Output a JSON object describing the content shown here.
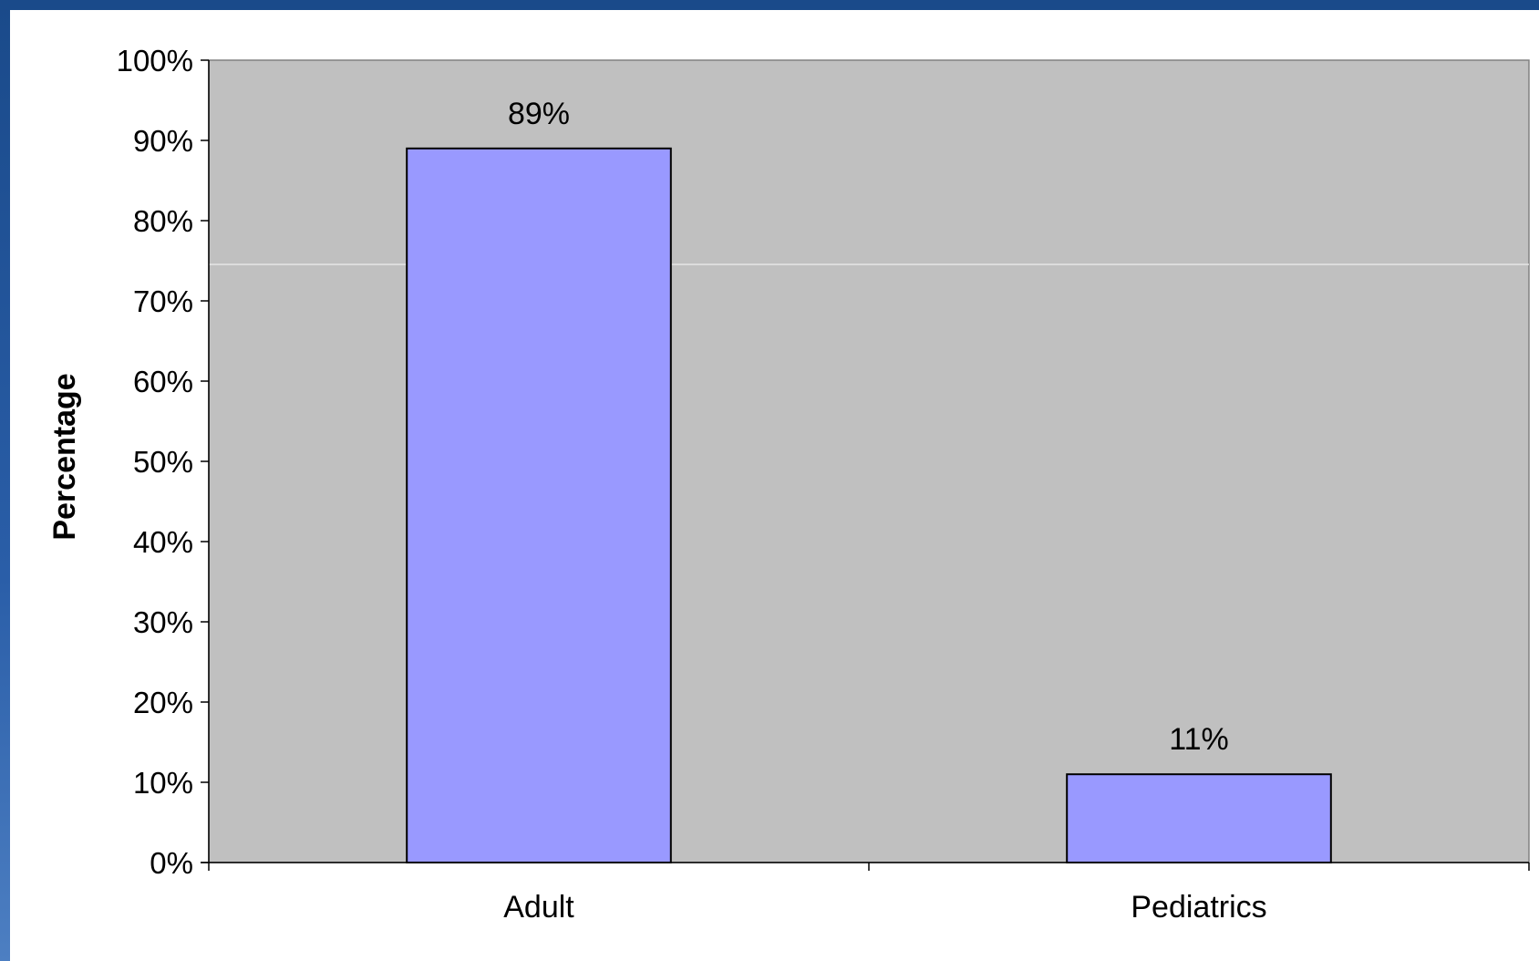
{
  "chart_data": {
    "type": "bar",
    "categories": [
      "Adult",
      "Pediatrics"
    ],
    "values": [
      89,
      11
    ],
    "data_labels": [
      "89%",
      "11%"
    ],
    "ylabel": "Percentage",
    "xlabel": "",
    "ylim": [
      0,
      100
    ],
    "yticks": [
      "0%",
      "10%",
      "20%",
      "30%",
      "40%",
      "50%",
      "60%",
      "70%",
      "80%",
      "90%",
      "100%"
    ],
    "grid": false,
    "legend": "none",
    "bar_color": "#9999ff",
    "plot_background": "#c0c0c0"
  }
}
